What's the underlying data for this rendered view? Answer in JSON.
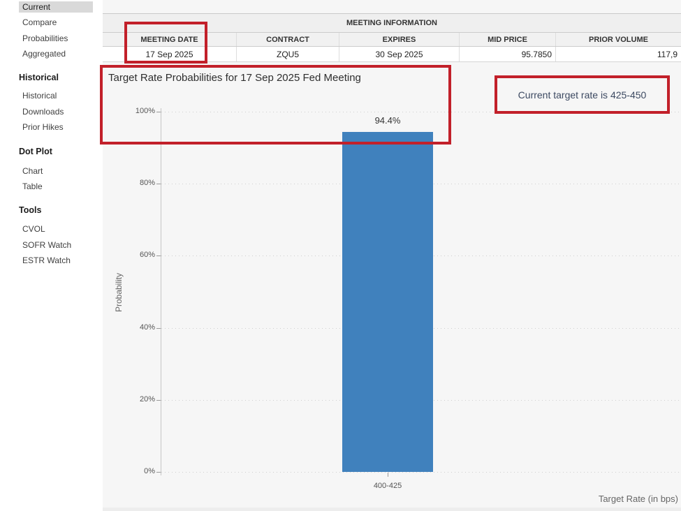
{
  "sidebar": {
    "active_item": "Current",
    "groups": [
      {
        "header": "",
        "items": [
          "Current",
          "Compare",
          "Probabilities",
          "Aggregated"
        ]
      },
      {
        "header": "Historical",
        "items": [
          "Historical",
          "Downloads",
          "Prior Hikes"
        ]
      },
      {
        "header": "Dot Plot",
        "items": [
          "Chart",
          "Table"
        ]
      },
      {
        "header": "Tools",
        "items": [
          "CVOL",
          "SOFR Watch",
          "ESTR Watch"
        ]
      }
    ]
  },
  "meeting_table": {
    "title": "MEETING INFORMATION",
    "columns": [
      "MEETING DATE",
      "CONTRACT",
      "EXPIRES",
      "MID PRICE",
      "PRIOR VOLUME"
    ],
    "row": [
      "17 Sep 2025",
      "ZQU5",
      "30 Sep 2025",
      "95.7850",
      "117,9"
    ]
  },
  "chart_data": {
    "type": "bar",
    "title": "Target Rate Probabilities for 17 Sep 2025 Fed Meeting",
    "categories": [
      "400-425"
    ],
    "values": [
      94.4
    ],
    "value_labels": [
      "94.4%"
    ],
    "xlabel": "Target Rate (in bps)",
    "ylabel": "Probability",
    "ylim": [
      0,
      100
    ],
    "yticks": [
      "100%",
      "80%",
      "60%",
      "40%",
      "20%",
      "0%"
    ],
    "grid": "dotted horizontal",
    "legend": "none",
    "bar_color": "#4081bd"
  },
  "annotations": {
    "current_rate_note": "Current target rate is 425-450",
    "highlight_color": "#c2202a"
  }
}
